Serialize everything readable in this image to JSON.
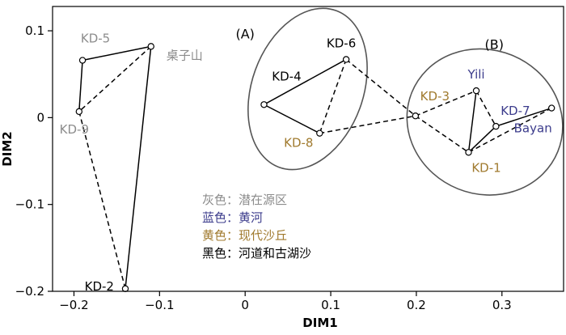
{
  "chart_data": {
    "type": "scatter",
    "xlabel": "DIM1",
    "ylabel": "DIM2",
    "xlim": [
      -0.225,
      0.372
    ],
    "ylim": [
      -0.2,
      0.128
    ],
    "x_ticks": [
      {
        "value": -0.2,
        "label": "−0.2"
      },
      {
        "value": -0.1,
        "label": "−0.1"
      },
      {
        "value": 0,
        "label": "0"
      },
      {
        "value": 0.1,
        "label": "0.1"
      },
      {
        "value": 0.2,
        "label": "0.2"
      },
      {
        "value": 0.3,
        "label": "0.3"
      }
    ],
    "y_ticks": [
      {
        "value": 0.1,
        "label": "0.1"
      },
      {
        "value": 0,
        "label": "0"
      },
      {
        "value": -0.1,
        "label": "−0.1"
      },
      {
        "value": -0.2,
        "label": "−0.2"
      }
    ],
    "points": [
      {
        "id": "kd5",
        "label": "KD-5",
        "x": -0.19,
        "y": 0.066,
        "color": "#8c8c8c",
        "label_anchor": "middle",
        "label_dx": 16,
        "label_dy": -22
      },
      {
        "id": "zhuozishan",
        "label": "桌子山",
        "x": -0.11,
        "y": 0.082,
        "color": "#8c8c8c",
        "label_anchor": "start",
        "label_dx": 19,
        "label_dy": 16
      },
      {
        "id": "kd9",
        "label": "KD-9",
        "x": -0.194,
        "y": 0.007,
        "color": "#8c8c8c",
        "label_anchor": "middle",
        "label_dx": -6,
        "label_dy": 27
      },
      {
        "id": "kd2",
        "label": "KD-2",
        "x": -0.14,
        "y": -0.197,
        "color": "#000000",
        "label_anchor": "end",
        "label_dx": -14,
        "label_dy": 2
      },
      {
        "id": "kd4",
        "label": "KD-4",
        "x": 0.022,
        "y": 0.015,
        "color": "#000000",
        "label_anchor": "middle",
        "label_dx": 28,
        "label_dy": -30
      },
      {
        "id": "kd6",
        "label": "KD-6",
        "x": 0.118,
        "y": 0.067,
        "color": "#000000",
        "label_anchor": "middle",
        "label_dx": -6,
        "label_dy": -15
      },
      {
        "id": "kd8",
        "label": "KD-8",
        "x": 0.087,
        "y": -0.018,
        "color": "#a07a2e",
        "label_anchor": "middle",
        "label_dx": -26,
        "label_dy": 17
      },
      {
        "id": "kd3",
        "label": "KD-3",
        "x": 0.199,
        "y": 0.002,
        "color": "#a07a2e",
        "label_anchor": "middle",
        "label_dx": 24,
        "label_dy": -19
      },
      {
        "id": "yili",
        "label": "Yili",
        "x": 0.27,
        "y": 0.031,
        "color": "#3c3c8c",
        "label_anchor": "middle",
        "label_dx": 0,
        "label_dy": -15
      },
      {
        "id": "kd7",
        "label": "KD-7",
        "x": 0.293,
        "y": -0.01,
        "color": "#3c3c8c",
        "label_anchor": "middle",
        "label_dx": 24,
        "label_dy": -14
      },
      {
        "id": "bayan",
        "label": "Bayan",
        "x": 0.358,
        "y": 0.011,
        "color": "#3c3c8c",
        "label_anchor": "middle",
        "label_dx": -23,
        "label_dy": 30
      },
      {
        "id": "kd1",
        "label": "KD-1",
        "x": 0.261,
        "y": -0.04,
        "color": "#a07a2e",
        "label_anchor": "middle",
        "label_dx": 22,
        "label_dy": 24
      }
    ],
    "edges": [
      {
        "from": "kd5",
        "to": "zhuozishan",
        "style": "solid"
      },
      {
        "from": "kd5",
        "to": "kd9",
        "style": "solid"
      },
      {
        "from": "zhuozishan",
        "to": "kd9",
        "style": "dashed"
      },
      {
        "from": "zhuozishan",
        "to": "kd2",
        "style": "solid"
      },
      {
        "from": "kd9",
        "to": "kd2",
        "style": "dashed"
      },
      {
        "from": "kd4",
        "to": "kd6",
        "style": "solid"
      },
      {
        "from": "kd4",
        "to": "kd8",
        "style": "solid"
      },
      {
        "from": "kd6",
        "to": "kd8",
        "style": "dashed"
      },
      {
        "from": "kd6",
        "to": "kd3",
        "style": "dashed"
      },
      {
        "from": "kd8",
        "to": "kd3",
        "style": "dashed"
      },
      {
        "from": "kd3",
        "to": "yili",
        "style": "dashed"
      },
      {
        "from": "kd3",
        "to": "kd1",
        "style": "dashed"
      },
      {
        "from": "yili",
        "to": "kd1",
        "style": "solid"
      },
      {
        "from": "yili",
        "to": "kd7",
        "style": "dashed"
      },
      {
        "from": "kd7",
        "to": "kd1",
        "style": "solid"
      },
      {
        "from": "kd7",
        "to": "bayan",
        "style": "solid"
      },
      {
        "from": "bayan",
        "to": "kd1",
        "style": "dashed"
      }
    ],
    "groups": [
      {
        "id": "group-a",
        "label": "(A)",
        "cx": 0.073,
        "cy": 0.033,
        "rx_data": 0.065,
        "ry_data": 0.096,
        "rotate": 20,
        "label_x": 0.0,
        "label_y": 0.091
      },
      {
        "id": "group-b",
        "label": "(B)",
        "cx": 0.28,
        "cy": -0.005,
        "rx_data": 0.092,
        "ry_data": 0.083,
        "rotate": 22,
        "label_x": 0.291,
        "label_y": 0.079
      }
    ],
    "legend": [
      {
        "text": "灰色：潜在源区",
        "color": "#8c8c8c"
      },
      {
        "text": "蓝色：黄河",
        "color": "#3c3c8c"
      },
      {
        "text": "黄色：现代沙丘",
        "color": "#a07a2e"
      },
      {
        "text": "黑色：河道和古湖沙",
        "color": "#000000"
      }
    ],
    "legend_position": "bottom-center",
    "grid": false
  }
}
